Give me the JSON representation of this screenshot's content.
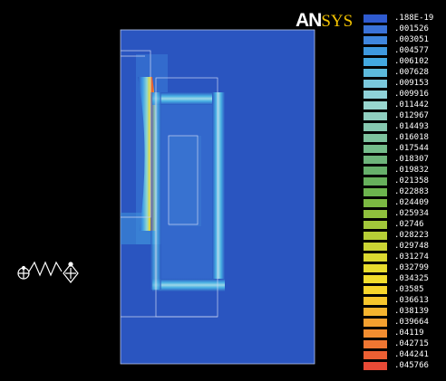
{
  "logo": {
    "prefix": "AN",
    "suffix": "SYS"
  },
  "legend": {
    "labels": [
      ".188E-19",
      ".001526",
      ".003051",
      ".004577",
      ".006102",
      ".007628",
      ".009153",
      ".009916",
      ".011442",
      ".012967",
      ".014493",
      ".016018",
      ".017544",
      ".018307",
      ".019832",
      ".021358",
      ".022883",
      ".024409",
      ".025934",
      ".02746",
      ".028223",
      ".029748",
      ".031274",
      ".032799",
      ".034325",
      ".03585",
      ".036613",
      ".038139",
      ".039664",
      ".04119",
      ".042715",
      ".044241",
      ".045766"
    ],
    "colors": [
      "#2f5bd0",
      "#3a72d8",
      "#3f86de",
      "#3e99df",
      "#43a9e1",
      "#5cbadc",
      "#7ac8dc",
      "#8fd2d9",
      "#98d6cf",
      "#8fcfc0",
      "#86c8b0",
      "#7dc29d",
      "#74bc8a",
      "#6db47a",
      "#66b06a",
      "#66b05b",
      "#6cb44e",
      "#7bb942",
      "#8fc03d",
      "#a2c73a",
      "#b6ce36",
      "#cad434",
      "#dbd930",
      "#e8dc2d",
      "#f2dd2c",
      "#f6d52b",
      "#f7c62c",
      "#f6b42e",
      "#f4a02f",
      "#f28d30",
      "#ef7632",
      "#ec5f33",
      "#e84a36"
    ]
  },
  "model": {
    "background_color": "#2a55c0",
    "symbol": "spring-symbol-icon"
  }
}
